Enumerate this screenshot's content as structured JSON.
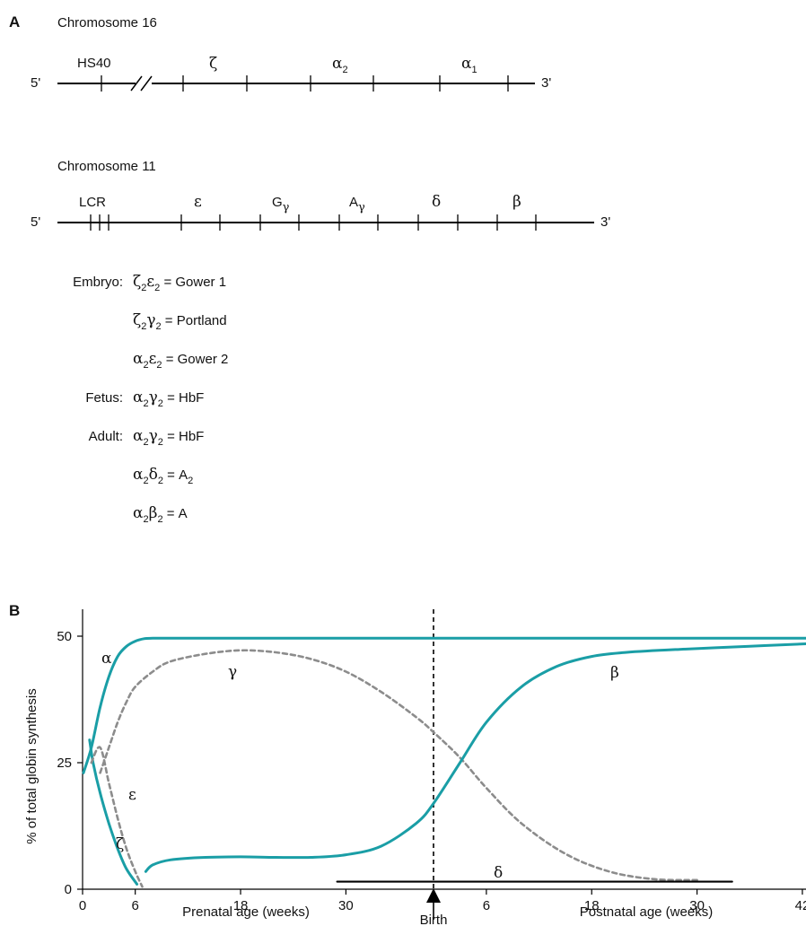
{
  "panel_a": {
    "label": "A",
    "chr16": {
      "title": "Chromosome 16",
      "five_prime": "5'",
      "three_prime": "3'",
      "genes": [
        {
          "name": "HS40",
          "sub": ""
        },
        {
          "name": "ζ",
          "sub": ""
        },
        {
          "name": "α",
          "sub": "2"
        },
        {
          "name": "α",
          "sub": "1"
        }
      ]
    },
    "chr11": {
      "title": "Chromosome 11",
      "five_prime": "5'",
      "three_prime": "3'",
      "genes": [
        {
          "name": "LCR",
          "sub": ""
        },
        {
          "name": "ε",
          "sub": ""
        },
        {
          "name": "G",
          "sub": "γ"
        },
        {
          "name": "A",
          "sub": "γ"
        },
        {
          "name": "δ",
          "sub": ""
        },
        {
          "name": "β",
          "sub": ""
        }
      ]
    },
    "hemoglobins": [
      {
        "stage": "Embryo:",
        "c1": "ζ",
        "s1": "2",
        "c2": "ε",
        "s2": "2",
        "eq": " = Gower 1",
        "es": ""
      },
      {
        "stage": "",
        "c1": "ζ",
        "s1": "2",
        "c2": "γ",
        "s2": "2",
        "eq": " = Portland",
        "es": ""
      },
      {
        "stage": "",
        "c1": "α",
        "s1": "2",
        "c2": "ε",
        "s2": "2",
        "eq": " = Gower 2",
        "es": ""
      },
      {
        "stage": "Fetus:",
        "c1": "α",
        "s1": "2",
        "c2": "γ",
        "s2": "2",
        "eq": " = HbF",
        "es": ""
      },
      {
        "stage": "Adult:",
        "c1": "α",
        "s1": "2",
        "c2": "γ",
        "s2": "2",
        "eq": " = HbF",
        "es": ""
      },
      {
        "stage": "",
        "c1": "α",
        "s1": "2",
        "c2": "δ",
        "s2": "2",
        "eq": " = A",
        "es": "2"
      },
      {
        "stage": "",
        "c1": "α",
        "s1": "2",
        "c2": "β",
        "s2": "2",
        "eq": " = A",
        "es": ""
      }
    ]
  },
  "panel_b": {
    "label": "B",
    "ylabel": "% of total globin synthesis",
    "prenatal_label": "Prenatal age (weeks)",
    "postnatal_label": "Postnatal age (weeks)",
    "birth_label": "Birth",
    "colors": {
      "solid": "#1a9ea6",
      "dashed": "#8c8c8c",
      "black": "#000000"
    }
  },
  "chart_data": {
    "type": "line",
    "title": "",
    "ylabel": "% of total globin synthesis",
    "xlabel_prenatal": "Prenatal age (weeks)",
    "xlabel_postnatal": "Postnatal age (weeks)",
    "ylim": [
      0,
      50
    ],
    "yticks": [
      0,
      25,
      50
    ],
    "xticks": [
      {
        "label": "0",
        "t": 0
      },
      {
        "label": "6",
        "t": 6
      },
      {
        "label": "18",
        "t": 18
      },
      {
        "label": "30",
        "t": 30
      },
      {
        "label": "6",
        "t": 46
      },
      {
        "label": "18",
        "t": 58
      },
      {
        "label": "30",
        "t": 70
      },
      {
        "label": "42",
        "t": 82
      }
    ],
    "birth_t": 40,
    "series": [
      {
        "name": "α",
        "style": "solid",
        "x": [
          0.1,
          1,
          2,
          3,
          4,
          5,
          6,
          7,
          8,
          10,
          20,
          40,
          60,
          84
        ],
        "y": [
          23,
          28,
          36,
          42,
          46,
          48,
          49,
          49.5,
          49.6,
          49.6,
          49.6,
          49.6,
          49.6,
          49.6
        ]
      },
      {
        "name": "γ",
        "style": "dashed",
        "x": [
          2,
          3,
          4,
          5,
          6,
          8,
          10,
          14,
          18,
          22,
          26,
          30,
          34,
          38,
          40,
          43,
          46,
          50,
          55,
          60,
          65,
          70
        ],
        "y": [
          23,
          28,
          33,
          37,
          40,
          43,
          45,
          46.5,
          47.2,
          46.8,
          45.5,
          43,
          39,
          34,
          31,
          26,
          20,
          13,
          7,
          3.5,
          2,
          1.8
        ]
      },
      {
        "name": "β",
        "style": "solid",
        "x": [
          7.2,
          8,
          10,
          14,
          18,
          22,
          26,
          30,
          34,
          38,
          40,
          43,
          46,
          50,
          54,
          58,
          62,
          68,
          76,
          84
        ],
        "y": [
          3.5,
          4.8,
          5.8,
          6.3,
          6.4,
          6.3,
          6.3,
          6.8,
          8.5,
          13,
          17,
          25,
          33,
          40,
          44,
          46,
          46.8,
          47.4,
          48,
          48.5
        ]
      },
      {
        "name": "ζ",
        "style": "solid",
        "x": [
          0.8,
          1.2,
          2,
          3,
          4,
          5,
          6.2
        ],
        "y": [
          29.5,
          25,
          19,
          13,
          8,
          4,
          1
        ]
      },
      {
        "name": "ε",
        "style": "dashed",
        "x": [
          1,
          2,
          3,
          4,
          5,
          6,
          6.8
        ],
        "y": [
          25,
          28,
          21,
          14,
          8,
          3.5,
          0.5
        ]
      },
      {
        "name": "δ",
        "style": "solid",
        "x": [
          29,
          74
        ],
        "y": [
          1.5,
          1.5
        ]
      }
    ]
  }
}
